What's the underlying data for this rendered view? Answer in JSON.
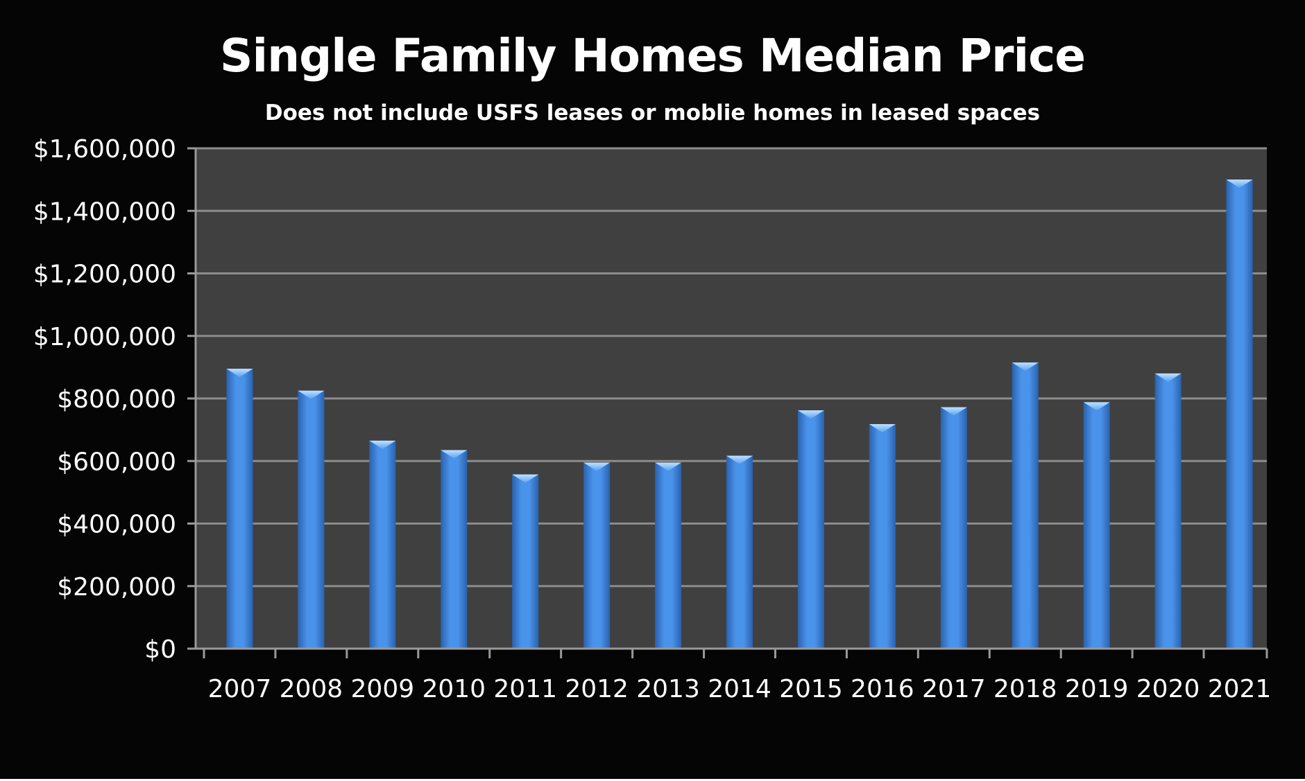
{
  "chart_data": {
    "type": "bar",
    "title": "Single Family Homes Median Price",
    "subtitle": "Does not include USFS leases or moblie homes in leased spaces",
    "categories": [
      "2007",
      "2008",
      "2009",
      "2010",
      "2011",
      "2012",
      "2013",
      "2014",
      "2015",
      "2016",
      "2017",
      "2018",
      "2019",
      "2020",
      "2021"
    ],
    "values": [
      895000,
      825000,
      665000,
      635000,
      557000,
      595000,
      595000,
      617000,
      762000,
      718000,
      772000,
      915000,
      788000,
      880000,
      1500000
    ],
    "ylim": [
      0,
      1600000
    ],
    "yticks": [
      0,
      200000,
      400000,
      600000,
      800000,
      1000000,
      1200000,
      1400000,
      1600000
    ],
    "ytick_labels": [
      "$0",
      "$200,000",
      "$400,000",
      "$600,000",
      "$800,000",
      "$1,000,000",
      "$1,200,000",
      "$1,400,000",
      "$1,600,000"
    ],
    "xlabel": "",
    "ylabel": "",
    "grid": true,
    "legend": "none",
    "colors": {
      "background": "#050505",
      "plot_area": "#404040",
      "gridline": "#8c8c8c",
      "bar": "#3c7fd6",
      "text": "#ffffff"
    }
  }
}
